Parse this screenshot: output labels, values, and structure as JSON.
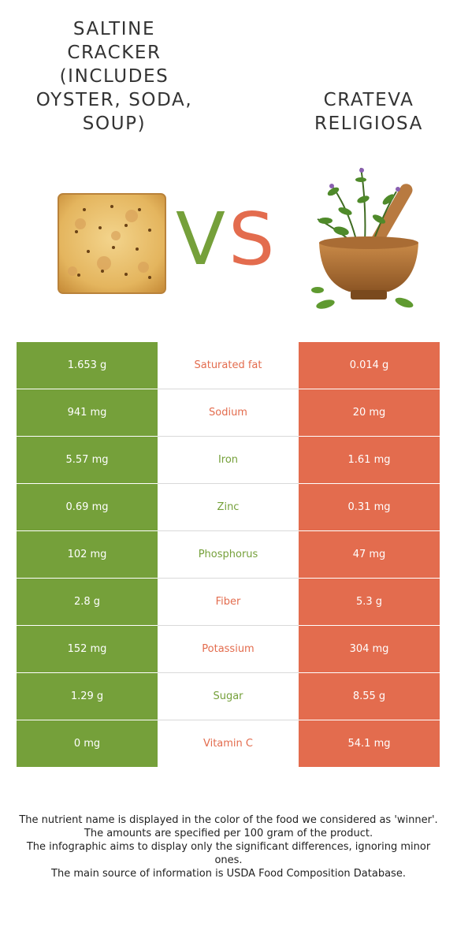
{
  "header": {
    "left_food": "SALTINE CRACKER (INCLUDES OYSTER, SODA, SOUP)",
    "right_food": "CRATEVA RELIGIOSA",
    "vs_v": "V",
    "vs_s": "S"
  },
  "colors": {
    "left": "#75a03a",
    "right": "#e36c4e"
  },
  "icons": {
    "left_image": "saltine-cracker-image",
    "right_image": "herbs-mortar-image"
  },
  "rows": [
    {
      "left": "1.653 g",
      "nutrient": "Saturated fat",
      "right": "0.014 g",
      "winner": "right"
    },
    {
      "left": "941 mg",
      "nutrient": "Sodium",
      "right": "20 mg",
      "winner": "right"
    },
    {
      "left": "5.57 mg",
      "nutrient": "Iron",
      "right": "1.61 mg",
      "winner": "left"
    },
    {
      "left": "0.69 mg",
      "nutrient": "Zinc",
      "right": "0.31 mg",
      "winner": "left"
    },
    {
      "left": "102 mg",
      "nutrient": "Phosphorus",
      "right": "47 mg",
      "winner": "left"
    },
    {
      "left": "2.8 g",
      "nutrient": "Fiber",
      "right": "5.3 g",
      "winner": "right"
    },
    {
      "left": "152 mg",
      "nutrient": "Potassium",
      "right": "304 mg",
      "winner": "right"
    },
    {
      "left": "1.29 g",
      "nutrient": "Sugar",
      "right": "8.55 g",
      "winner": "left"
    },
    {
      "left": "0 mg",
      "nutrient": "Vitamin C",
      "right": "54.1 mg",
      "winner": "right"
    }
  ],
  "footnotes": [
    "The nutrient name is displayed in the color of the food we considered as 'winner'.",
    "The amounts are specified per 100 gram of the product.",
    "The infographic aims to display only the significant differences, ignoring minor ones.",
    "The main source of information is USDA Food Composition Database."
  ]
}
